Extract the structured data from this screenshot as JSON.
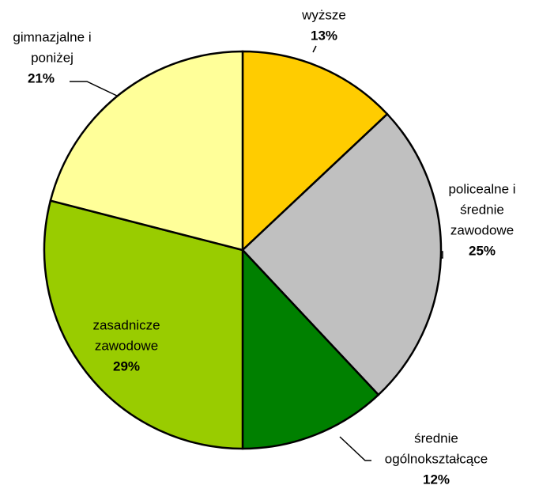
{
  "chart_data": {
    "type": "pie",
    "categories": [
      [
        "wyższe"
      ],
      [
        "policealne i",
        "średnie",
        "zawodowe"
      ],
      [
        "średnie",
        "ogólnokształcące"
      ],
      [
        "zasadnicze",
        "zawodowe"
      ],
      [
        "gimnazjalne i",
        "poniżej"
      ]
    ],
    "values": [
      13,
      25,
      12,
      29,
      21
    ],
    "value_labels": [
      "13%",
      "25%",
      "12%",
      "29%",
      "21%"
    ],
    "colors": [
      "#FFCC00",
      "#C0C0C0",
      "#008000",
      "#99CC00",
      "#FFFF99"
    ]
  }
}
